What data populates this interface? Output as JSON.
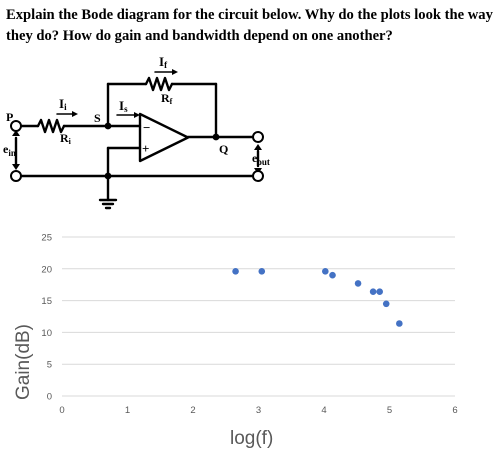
{
  "question": "Explain the Bode diagram for the circuit below. Why do the plots look the way they do?  How do gain and bandwidth depend on one another?",
  "circuit": {
    "labels": {
      "if": "I",
      "if_sub": "f",
      "rf": "R",
      "rf_sub": "f",
      "ii": "I",
      "ii_sub": "i",
      "ri": "R",
      "ri_sub": "i",
      "is": "I",
      "is_sub": "s",
      "p": "P",
      "s": "S",
      "q": "Q",
      "ein": "e",
      "ein_sub": "in",
      "eout": "e",
      "eout_sub": "out",
      "minus": "−",
      "plus": "+"
    }
  },
  "chart_data": {
    "type": "scatter",
    "title": "",
    "xlabel": "log(f)",
    "ylabel": "Gain(dB)",
    "xlim": [
      0,
      6
    ],
    "ylim": [
      0,
      25
    ],
    "x_ticks": [
      "0",
      "1",
      "2",
      "3",
      "4",
      "5",
      "6"
    ],
    "y_ticks": [
      "0",
      "5",
      "10",
      "15",
      "20",
      "25"
    ],
    "grid": "horizontal",
    "legend": "none",
    "marker_color": "#4472C4",
    "gridline_color": "#D9D9D9",
    "series": [
      {
        "x": [
          2.65,
          3.05,
          4.02,
          4.13,
          4.52,
          4.75,
          4.85,
          4.95,
          5.15
        ],
        "y": [
          19.6,
          19.6,
          19.6,
          19.0,
          17.7,
          16.4,
          16.4,
          14.5,
          11.4
        ]
      }
    ]
  }
}
